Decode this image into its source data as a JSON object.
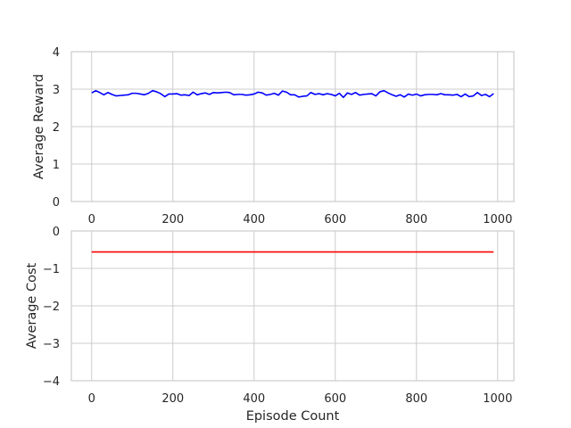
{
  "chart_data": [
    {
      "type": "line",
      "title": "",
      "xlabel": "",
      "ylabel": "Average Reward",
      "xlim": [
        -50,
        1040
      ],
      "ylim": [
        0,
        4
      ],
      "x_ticks": [
        0,
        200,
        400,
        600,
        800,
        1000
      ],
      "y_ticks": [
        0,
        1,
        2,
        3,
        4
      ],
      "grid": true,
      "series": [
        {
          "color": "#0000ff",
          "x": [
            0,
            10,
            20,
            30,
            40,
            50,
            60,
            70,
            80,
            90,
            100,
            110,
            120,
            130,
            140,
            150,
            160,
            170,
            180,
            190,
            200,
            210,
            220,
            230,
            240,
            250,
            260,
            270,
            280,
            290,
            300,
            310,
            320,
            330,
            340,
            350,
            360,
            370,
            380,
            390,
            400,
            410,
            420,
            430,
            440,
            450,
            460,
            470,
            480,
            490,
            500,
            510,
            520,
            530,
            540,
            550,
            560,
            570,
            580,
            590,
            600,
            610,
            620,
            630,
            640,
            650,
            660,
            670,
            680,
            690,
            700,
            710,
            720,
            730,
            740,
            750,
            760,
            770,
            780,
            790,
            800,
            810,
            820,
            830,
            840,
            850,
            860,
            870,
            880,
            890,
            900,
            910,
            920,
            930,
            940,
            950,
            960,
            970,
            980,
            990
          ],
          "y": [
            2.9,
            2.96,
            2.91,
            2.85,
            2.91,
            2.86,
            2.82,
            2.83,
            2.84,
            2.85,
            2.89,
            2.89,
            2.87,
            2.85,
            2.89,
            2.96,
            2.93,
            2.88,
            2.8,
            2.87,
            2.87,
            2.88,
            2.84,
            2.85,
            2.83,
            2.92,
            2.85,
            2.88,
            2.9,
            2.86,
            2.91,
            2.9,
            2.91,
            2.92,
            2.91,
            2.85,
            2.86,
            2.86,
            2.84,
            2.85,
            2.87,
            2.92,
            2.9,
            2.84,
            2.86,
            2.89,
            2.84,
            2.95,
            2.92,
            2.85,
            2.85,
            2.79,
            2.81,
            2.82,
            2.91,
            2.86,
            2.88,
            2.85,
            2.88,
            2.86,
            2.82,
            2.89,
            2.78,
            2.9,
            2.86,
            2.91,
            2.84,
            2.86,
            2.87,
            2.88,
            2.82,
            2.93,
            2.96,
            2.9,
            2.85,
            2.81,
            2.85,
            2.79,
            2.87,
            2.84,
            2.87,
            2.82,
            2.85,
            2.86,
            2.86,
            2.85,
            2.88,
            2.85,
            2.85,
            2.84,
            2.86,
            2.8,
            2.87,
            2.8,
            2.82,
            2.91,
            2.83,
            2.86,
            2.8,
            2.88
          ]
        }
      ]
    },
    {
      "type": "line",
      "title": "",
      "xlabel": "Episode Count",
      "ylabel": "Average Cost",
      "xlim": [
        -50,
        1040
      ],
      "ylim": [
        -4,
        0
      ],
      "x_ticks": [
        0,
        200,
        400,
        600,
        800,
        1000
      ],
      "y_ticks": [
        -4,
        -3,
        -2,
        -1,
        0
      ],
      "grid": true,
      "series": [
        {
          "color": "#ff0000",
          "x": [
            0,
            50,
            100,
            150,
            200,
            250,
            300,
            350,
            400,
            450,
            500,
            550,
            600,
            650,
            700,
            750,
            800,
            850,
            900,
            950,
            990
          ],
          "y": [
            -0.56,
            -0.56,
            -0.56,
            -0.56,
            -0.56,
            -0.56,
            -0.56,
            -0.56,
            -0.56,
            -0.56,
            -0.56,
            -0.56,
            -0.56,
            -0.56,
            -0.56,
            -0.56,
            -0.56,
            -0.56,
            -0.56,
            -0.56,
            -0.56
          ]
        }
      ]
    }
  ]
}
